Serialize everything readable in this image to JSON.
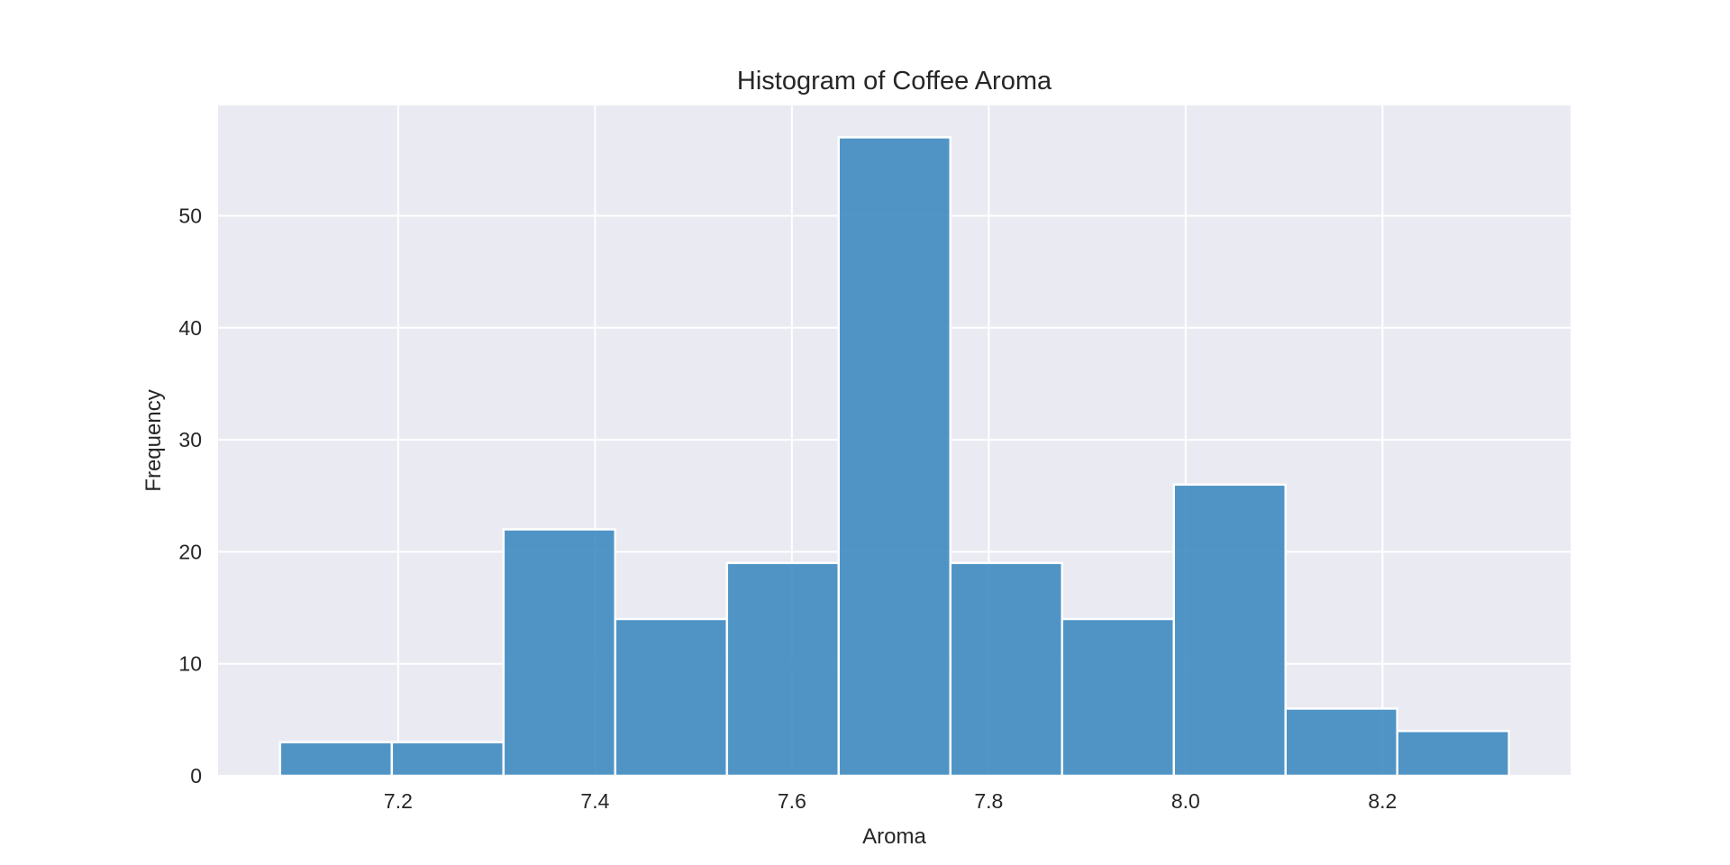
{
  "chart_data": {
    "type": "bar",
    "subtype": "histogram",
    "title": "Histogram of Coffee Aroma",
    "xlabel": "Aroma",
    "ylabel": "Frequency",
    "bin_edges": [
      7.08,
      7.1935,
      7.307,
      7.4205,
      7.534,
      7.6475,
      7.761,
      7.8745,
      7.988,
      8.1015,
      8.215,
      8.3285
    ],
    "values": [
      3,
      3,
      22,
      14,
      19,
      57,
      19,
      14,
      26,
      6,
      4
    ],
    "xlim": [
      7.017,
      8.391
    ],
    "ylim": [
      0,
      59.85
    ],
    "xticks": [
      7.2,
      7.4,
      7.6,
      7.8,
      8.0,
      8.2
    ],
    "xtick_labels": [
      "7.2",
      "7.4",
      "7.6",
      "7.8",
      "8.0",
      "8.2"
    ],
    "yticks": [
      0,
      10,
      20,
      30,
      40,
      50
    ],
    "ytick_labels": [
      "0",
      "10",
      "20",
      "30",
      "40",
      "50"
    ],
    "grid": true,
    "legend": "none",
    "colors": {
      "bar": "#3f8bc1",
      "bar_edge": "#ffffff",
      "plot_background": "#eaeaf2",
      "grid": "#ffffff",
      "text": "#262626"
    }
  }
}
